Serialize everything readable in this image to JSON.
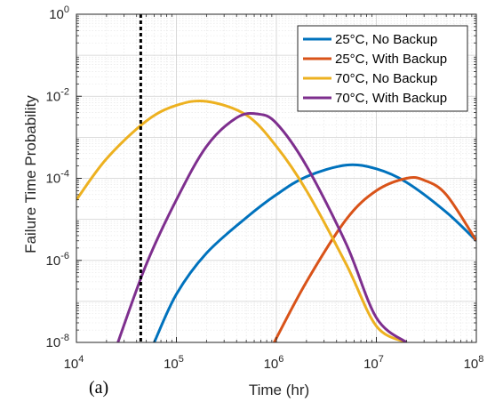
{
  "panel_label": "(a)",
  "colors": {
    "blue": "#0072BD",
    "orange": "#D95319",
    "yellow": "#EDB120",
    "purple": "#7E2F8E",
    "marker_line": "#000000"
  },
  "chart_data": {
    "type": "line",
    "title": "",
    "xlabel": "Time (hr)",
    "ylabel": "Failure Time Probability",
    "xscale": "log",
    "yscale": "log",
    "xlim": [
      10000,
      100000000
    ],
    "ylim": [
      1e-08,
      1
    ],
    "grid": true,
    "minor_grid": true,
    "legend_position": "top-right",
    "x_ticks": [
      {
        "base": "10",
        "exp": "4"
      },
      {
        "base": "10",
        "exp": "5"
      },
      {
        "base": "10",
        "exp": "6"
      },
      {
        "base": "10",
        "exp": "7"
      },
      {
        "base": "10",
        "exp": "8"
      }
    ],
    "y_ticks": [
      {
        "base": "10",
        "exp": "-8"
      },
      {
        "base": "10",
        "exp": "-6"
      },
      {
        "base": "10",
        "exp": "-4"
      },
      {
        "base": "10",
        "exp": "-2"
      },
      {
        "base": "10",
        "exp": "0"
      }
    ],
    "vertical_marker_x": 44000,
    "series": [
      {
        "name": "25°C, No Backup",
        "color": "#0072BD",
        "x": [
          60000,
          100000,
          200000,
          500000,
          1000000,
          2000000,
          5000000,
          10000000,
          20000000,
          50000000,
          100000000
        ],
        "y": [
          1e-08,
          1.5e-07,
          1.5e-06,
          1.1e-05,
          4e-05,
          0.00011,
          0.00021,
          0.00017,
          8e-05,
          1.5e-05,
          3e-06
        ]
      },
      {
        "name": "25°C, With Backup",
        "color": "#D95319",
        "x": [
          950000,
          2000000,
          5000000,
          10000000,
          20000000,
          30000000,
          50000000,
          100000000
        ],
        "y": [
          1e-08,
          3e-07,
          1e-05,
          5e-05,
          0.0001,
          9e-05,
          4e-05,
          3e-06
        ]
      },
      {
        "name": "70°C, No Backup",
        "color": "#EDB120",
        "x": [
          10000,
          20000,
          50000,
          100000,
          200000,
          500000,
          1000000,
          2000000,
          5000000,
          10000000,
          20000000
        ],
        "y": [
          3e-05,
          0.0003,
          0.0025,
          0.006,
          0.0075,
          0.0035,
          0.0006,
          5e-05,
          8e-07,
          2.5e-08,
          1e-08
        ]
      },
      {
        "name": "70°C, With Backup",
        "color": "#7E2F8E",
        "x": [
          26000,
          50000,
          100000,
          200000,
          400000,
          650000,
          1000000,
          2000000,
          5000000,
          10000000,
          20000000
        ],
        "y": [
          1e-08,
          8e-07,
          3e-05,
          0.0006,
          0.003,
          0.0037,
          0.0022,
          0.0002,
          2.5e-06,
          4e-08,
          1e-08
        ]
      }
    ]
  }
}
